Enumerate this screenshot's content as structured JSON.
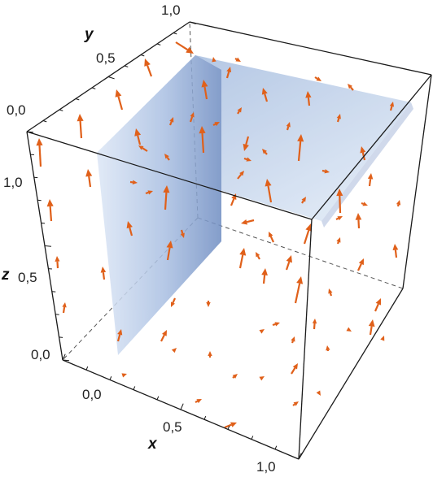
{
  "figure": {
    "axes": {
      "x": {
        "name": "x",
        "ticks": [
          "0,0",
          "0,5",
          "1,0"
        ]
      },
      "y": {
        "name": "y",
        "ticks": [
          "0,0",
          "0,5",
          "1,0"
        ]
      },
      "z": {
        "name": "z",
        "ticks": [
          "0,0",
          "0,5",
          "1,0"
        ]
      }
    },
    "colors": {
      "arrow": "#e0601a",
      "surface_light": "#c9daf1",
      "surface_dark": "#5f7fb6",
      "box": "#1a1a1a"
    }
  }
}
